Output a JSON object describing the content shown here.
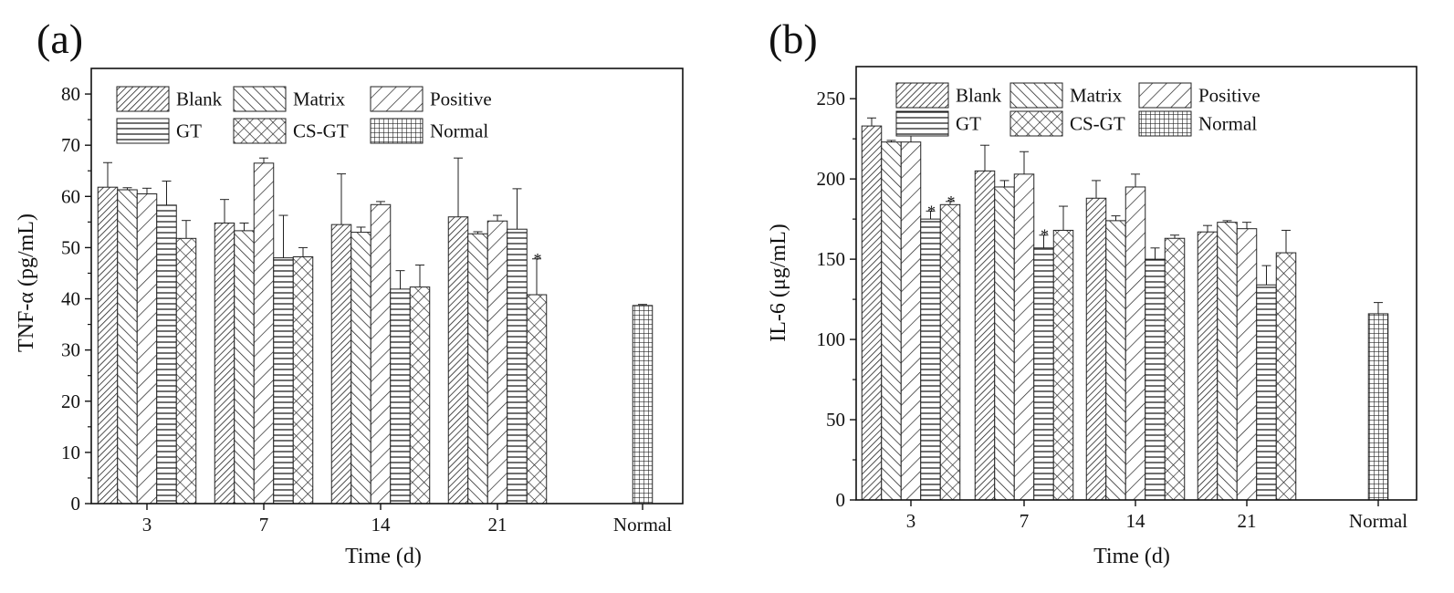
{
  "chart_data": [
    {
      "type": "bar",
      "panel_label": "(a)",
      "xlabel": "Time (d)",
      "ylabel": "TNF-α (pg/mL)",
      "ylim": [
        0,
        85
      ],
      "yticks": [
        0,
        10,
        20,
        30,
        40,
        50,
        60,
        70,
        80
      ],
      "groups": [
        "3",
        "7",
        "14",
        "21",
        "Normal"
      ],
      "series": [
        {
          "name": "Blank",
          "pattern": "blank",
          "values": [
            61.8,
            54.8,
            54.5,
            56.0,
            null
          ],
          "errors": [
            4.8,
            4.6,
            9.9,
            11.5,
            null
          ]
        },
        {
          "name": "Matrix",
          "pattern": "matrix",
          "values": [
            61.3,
            53.3,
            53.0,
            52.7,
            null
          ],
          "errors": [
            0.4,
            1.5,
            1.0,
            0.4,
            null
          ]
        },
        {
          "name": "Positive",
          "pattern": "positive",
          "values": [
            60.5,
            66.5,
            58.4,
            55.2,
            null
          ],
          "errors": [
            1.1,
            1.0,
            0.6,
            1.1,
            null
          ]
        },
        {
          "name": "GT",
          "pattern": "gt",
          "values": [
            58.3,
            48.0,
            41.9,
            53.6,
            null
          ],
          "errors": [
            4.7,
            8.3,
            3.6,
            7.9,
            null
          ]
        },
        {
          "name": "CS-GT",
          "pattern": "csgt",
          "values": [
            51.8,
            48.2,
            42.3,
            40.8,
            null
          ],
          "errors": [
            3.5,
            1.8,
            4.3,
            7.0,
            null
          ]
        },
        {
          "name": "Normal",
          "pattern": "normal",
          "values": [
            null,
            null,
            null,
            null,
            38.7
          ],
          "errors": [
            null,
            null,
            null,
            null,
            0.2
          ]
        }
      ],
      "annotations": [
        {
          "group": "21",
          "series": "CS-GT",
          "text": "*"
        }
      ],
      "legend_position": "top-left"
    },
    {
      "type": "bar",
      "panel_label": "(b)",
      "xlabel": "Time (d)",
      "ylabel": "IL-6 (μg/mL)",
      "ylim": [
        0,
        270
      ],
      "yticks": [
        0,
        50,
        100,
        150,
        200,
        250
      ],
      "groups": [
        "3",
        "7",
        "14",
        "21",
        "Normal"
      ],
      "series": [
        {
          "name": "Blank",
          "pattern": "blank",
          "values": [
            233,
            205,
            188,
            167,
            null
          ],
          "errors": [
            5,
            16,
            11,
            4,
            null
          ]
        },
        {
          "name": "Matrix",
          "pattern": "matrix",
          "values": [
            223,
            195,
            174,
            173,
            null
          ],
          "errors": [
            1,
            4,
            3,
            1,
            null
          ]
        },
        {
          "name": "Positive",
          "pattern": "positive",
          "values": [
            223,
            203,
            195,
            169,
            null
          ],
          "errors": [
            7,
            14,
            8,
            4,
            null
          ]
        },
        {
          "name": "GT",
          "pattern": "gt",
          "values": [
            175,
            157,
            150,
            134,
            null
          ],
          "errors": [
            5,
            8,
            7,
            12,
            null
          ]
        },
        {
          "name": "CS-GT",
          "pattern": "csgt",
          "values": [
            184,
            168,
            163,
            154,
            null
          ],
          "errors": [
            2,
            15,
            2,
            14,
            null
          ]
        },
        {
          "name": "Normal",
          "pattern": "normal",
          "values": [
            null,
            null,
            null,
            null,
            116
          ],
          "errors": [
            null,
            null,
            null,
            null,
            7
          ]
        }
      ],
      "annotations": [
        {
          "group": "3",
          "series": "GT",
          "text": "*"
        },
        {
          "group": "3",
          "series": "CS-GT",
          "text": "*"
        },
        {
          "group": "7",
          "series": "GT",
          "text": "*"
        }
      ],
      "legend_position": "top"
    }
  ]
}
